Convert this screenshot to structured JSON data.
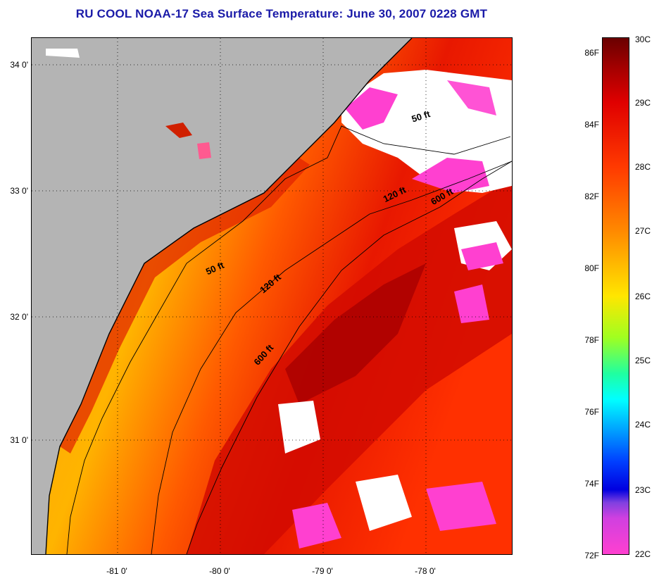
{
  "title": "RU COOL  NOAA-17  Sea Surface Temperature:  June 30, 2007 0228 GMT",
  "latitude_labels": [
    "34 0'",
    "33 0'",
    "32 0'",
    "31 0'"
  ],
  "longitude_labels": [
    "-81 0'",
    "-80 0'",
    "-79 0'",
    "-78 0'"
  ],
  "colorbar": {
    "fahrenheit_labels": [
      "86F",
      "84F",
      "82F",
      "80F",
      "78F",
      "76F",
      "74F",
      "72F"
    ],
    "celsius_labels": [
      "30C",
      "29C",
      "28C",
      "27C",
      "26C",
      "25C",
      "24C",
      "23C",
      "22C"
    ],
    "range_c": [
      22,
      30
    ],
    "range_f": [
      72,
      86
    ]
  },
  "contour_labels": {
    "north_50": "50 ft",
    "north_120": "120 ft",
    "north_600": "600 ft",
    "south_50": "50 ft",
    "south_120": "120 ft",
    "south_600": "600 ft"
  },
  "colors": {
    "land": "#b4b4b4",
    "cloud": "#ffffff",
    "title": "#1a1aa8",
    "warm_core": "#c80000",
    "shelf": "#ff7800",
    "cold_flag": "#ff40d0"
  }
}
